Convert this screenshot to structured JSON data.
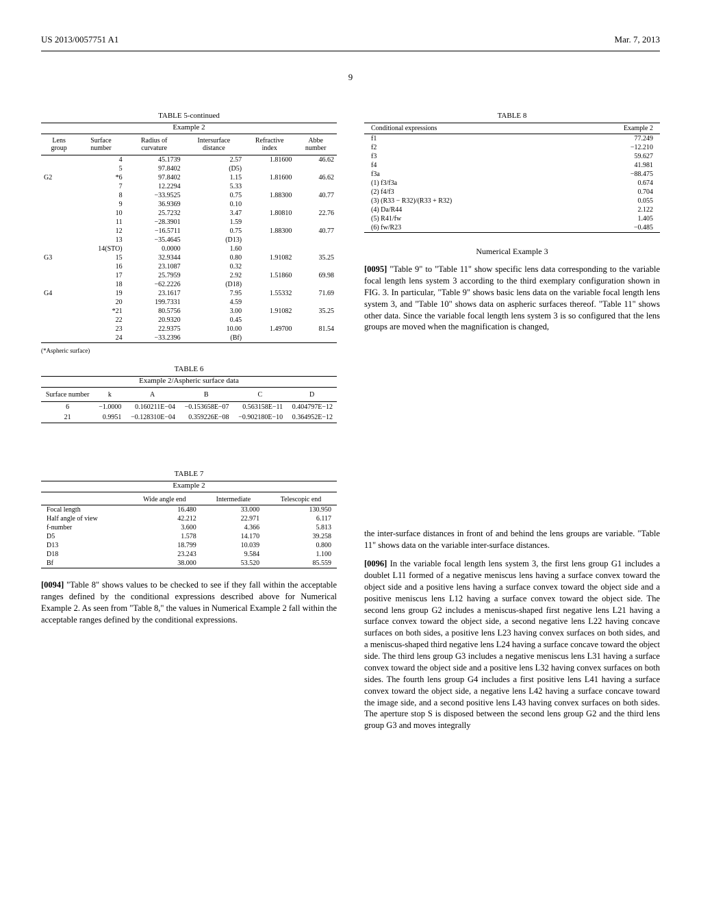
{
  "header": {
    "left": "US 2013/0057751 A1",
    "right": "Mar. 7, 2013",
    "page_num": "9"
  },
  "table5": {
    "title": "TABLE 5-continued",
    "subtitle": "Example 2",
    "headers": [
      "Lens group",
      "Surface number",
      "Radius of curvature",
      "Intersurface distance",
      "Refractive index",
      "Abbe number"
    ],
    "rows": [
      [
        "",
        "4",
        "45.1739",
        "2.57",
        "1.81600",
        "46.62"
      ],
      [
        "",
        "5",
        "97.8402",
        "(D5)",
        "",
        ""
      ],
      [
        "G2",
        "*6",
        "97.8402",
        "1.15",
        "1.81600",
        "46.62"
      ],
      [
        "",
        "7",
        "12.2294",
        "5.33",
        "",
        ""
      ],
      [
        "",
        "8",
        "−33.9525",
        "0.75",
        "1.88300",
        "40.77"
      ],
      [
        "",
        "9",
        "36.9369",
        "0.10",
        "",
        ""
      ],
      [
        "",
        "10",
        "25.7232",
        "3.47",
        "1.80810",
        "22.76"
      ],
      [
        "",
        "11",
        "−28.3901",
        "1.59",
        "",
        ""
      ],
      [
        "",
        "12",
        "−16.5711",
        "0.75",
        "1.88300",
        "40.77"
      ],
      [
        "",
        "13",
        "−35.4645",
        "(D13)",
        "",
        ""
      ],
      [
        "",
        "14(STO)",
        "0.0000",
        "1.60",
        "",
        ""
      ],
      [
        "G3",
        "15",
        "32.9344",
        "0.80",
        "1.91082",
        "35.25"
      ],
      [
        "",
        "16",
        "23.1087",
        "0.32",
        "",
        ""
      ],
      [
        "",
        "17",
        "25.7959",
        "2.92",
        "1.51860",
        "69.98"
      ],
      [
        "",
        "18",
        "−62.2226",
        "(D18)",
        "",
        ""
      ],
      [
        "G4",
        "19",
        "23.1617",
        "7.95",
        "1.55332",
        "71.69"
      ],
      [
        "",
        "20",
        "199.7331",
        "4.59",
        "",
        ""
      ],
      [
        "",
        "*21",
        "80.5756",
        "3.00",
        "1.91082",
        "35.25"
      ],
      [
        "",
        "22",
        "20.9320",
        "0.45",
        "",
        ""
      ],
      [
        "",
        "23",
        "22.9375",
        "10.00",
        "1.49700",
        "81.54"
      ],
      [
        "",
        "24",
        "−33.2396",
        "(Bf)",
        "",
        ""
      ]
    ],
    "footnote": "(*Aspheric surface)"
  },
  "table6": {
    "title": "TABLE 6",
    "subtitle": "Example 2/Aspheric surface data",
    "headers": [
      "Surface number",
      "k",
      "A",
      "B",
      "C",
      "D"
    ],
    "rows": [
      [
        "6",
        "−1.0000",
        "0.160211E−04",
        "−0.153658E−07",
        "0.563158E−11",
        "0.404797E−12"
      ],
      [
        "21",
        "0.9951",
        "−0.128310E−04",
        "0.359226E−08",
        "−0.902180E−10",
        "0.364952E−12"
      ]
    ]
  },
  "table7": {
    "title": "TABLE 7",
    "subtitle": "Example 2",
    "headers": [
      "",
      "Wide angle end",
      "Intermediate",
      "Telescopic end"
    ],
    "rows": [
      [
        "Focal length",
        "16.480",
        "33.000",
        "130.950"
      ],
      [
        "Half angle of view",
        "42.212",
        "22.971",
        "6.117"
      ],
      [
        "f-number",
        "3.600",
        "4.366",
        "5.813"
      ],
      [
        "D5",
        "1.578",
        "14.170",
        "39.258"
      ],
      [
        "D13",
        "18.799",
        "10.039",
        "0.800"
      ],
      [
        "D18",
        "23.243",
        "9.584",
        "1.100"
      ],
      [
        "Bf",
        "38.000",
        "53.520",
        "85.559"
      ]
    ]
  },
  "table8": {
    "title": "TABLE 8",
    "headers": [
      "Conditional expressions",
      "Example 2"
    ],
    "rows": [
      [
        "f1",
        "77.249"
      ],
      [
        "f2",
        "−12.210"
      ],
      [
        "f3",
        "59.627"
      ],
      [
        "f4",
        "41.981"
      ],
      [
        "f3a",
        "−88.475"
      ],
      [
        "(1) f3/f3a",
        "0.674"
      ],
      [
        "(2) f4/f3",
        "0.704"
      ],
      [
        "(3) (R33 − R32)/(R33 + R32)",
        "0.055"
      ],
      [
        "(4) Da/R44",
        "2.122"
      ],
      [
        "(5) R41/fw",
        "1.405"
      ],
      [
        "(6) fw/R23",
        "−0.485"
      ]
    ]
  },
  "para94": {
    "num": "[0094]",
    "text": "\"Table 8\" shows values to be checked to see if they fall within the acceptable ranges defined by the conditional expressions described above for Numerical Example 2. As seen from \"Table 8,\" the values in Numerical Example 2 fall within the acceptable ranges defined by the conditional expressions."
  },
  "heading3": "Numerical Example 3",
  "para95": {
    "num": "[0095]",
    "text": "\"Table 9\" to \"Table 11\" show specific lens data corresponding to the variable focal length lens system 3 according to the third exemplary configuration shown in FIG. 3. In particular, \"Table 9\" shows basic lens data on the variable focal length lens system 3, and \"Table 10\" shows data on aspheric surfaces thereof. \"Table 11\" shows other data. Since the variable focal length lens system 3 is so configured that the lens groups are moved when the magnification is changed,"
  },
  "para95b": {
    "text": "the inter-surface distances in front of and behind the lens groups are variable. \"Table 11\" shows data on the variable inter-surface distances."
  },
  "para96": {
    "num": "[0096]",
    "text": "In the variable focal length lens system 3, the first lens group G1 includes a doublet L11 formed of a negative meniscus lens having a surface convex toward the object side and a positive lens having a surface convex toward the object side and a positive meniscus lens L12 having a surface convex toward the object side. The second lens group G2 includes a meniscus-shaped first negative lens L21 having a surface convex toward the object side, a second negative lens L22 having concave surfaces on both sides, a positive lens L23 having convex surfaces on both sides, and a meniscus-shaped third negative lens L24 having a surface concave toward the object side. The third lens group G3 includes a negative meniscus lens L31 having a surface convex toward the object side and a positive lens L32 having convex surfaces on both sides. The fourth lens group G4 includes a first positive lens L41 having a surface convex toward the object side, a negative lens L42 having a surface concave toward the image side, and a second positive lens L43 having convex surfaces on both sides. The aperture stop S is disposed between the second lens group G2 and the third lens group G3 and moves integrally"
  }
}
